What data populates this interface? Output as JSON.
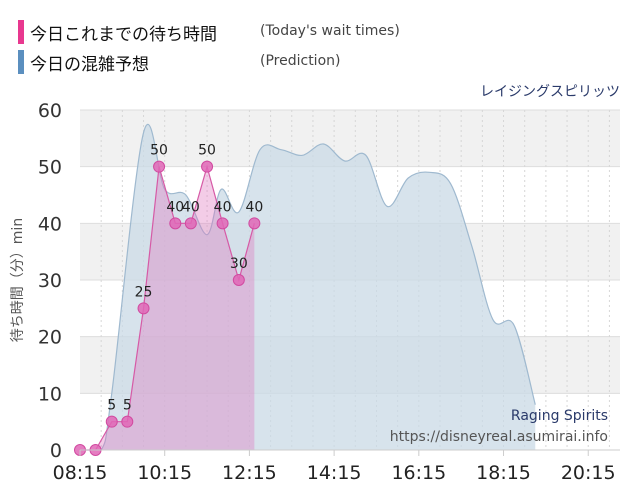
{
  "legend": {
    "items": [
      {
        "label": "今日これまでの待ち時間",
        "sub": "(Today's wait times)",
        "color": "#e8388f"
      },
      {
        "label": "今日の混雑予想",
        "sub": "(Prediction)",
        "color": "#5b8fbf"
      }
    ]
  },
  "chart_data": {
    "type": "area",
    "title": "レイジングスピリッツ",
    "xlabel": "",
    "ylabel": "待ち時間（分）min",
    "ylim": [
      0,
      60
    ],
    "yticks": [
      "0",
      "10",
      "20",
      "30",
      "40",
      "50",
      "60"
    ],
    "xticks": [
      "08:15",
      "10:15",
      "12:15",
      "14:15",
      "16:15",
      "18:15",
      "20:15"
    ],
    "xlim": [
      "08:15",
      "21:00"
    ],
    "grid": true,
    "series": [
      {
        "name": "今日これまでの待ち時間",
        "color": "#e8388f",
        "points": [
          {
            "t": "08:15",
            "v": 0
          },
          {
            "t": "08:37",
            "v": 0
          },
          {
            "t": "09:00",
            "v": 5
          },
          {
            "t": "09:22",
            "v": 5
          },
          {
            "t": "09:45",
            "v": 25
          },
          {
            "t": "10:07",
            "v": 50
          },
          {
            "t": "10:30",
            "v": 40
          },
          {
            "t": "10:52",
            "v": 40
          },
          {
            "t": "11:15",
            "v": 50
          },
          {
            "t": "11:37",
            "v": 40
          },
          {
            "t": "12:00",
            "v": 30
          },
          {
            "t": "12:22",
            "v": 40
          }
        ],
        "labels": [
          "",
          "",
          "5",
          "5",
          "25",
          "50",
          "40",
          "40",
          "50",
          "40",
          "30",
          "40"
        ]
      },
      {
        "name": "今日の混雑予想",
        "color": "#9fb9cf",
        "points": [
          {
            "t": "08:15",
            "v": 0
          },
          {
            "t": "08:45",
            "v": 0
          },
          {
            "t": "09:00",
            "v": 10
          },
          {
            "t": "09:45",
            "v": 56
          },
          {
            "t": "10:15",
            "v": 46
          },
          {
            "t": "10:45",
            "v": 45
          },
          {
            "t": "11:15",
            "v": 38
          },
          {
            "t": "11:35",
            "v": 46
          },
          {
            "t": "12:00",
            "v": 42
          },
          {
            "t": "12:30",
            "v": 53
          },
          {
            "t": "13:00",
            "v": 53
          },
          {
            "t": "13:30",
            "v": 52
          },
          {
            "t": "14:00",
            "v": 54
          },
          {
            "t": "14:30",
            "v": 51
          },
          {
            "t": "15:00",
            "v": 52
          },
          {
            "t": "15:30",
            "v": 43
          },
          {
            "t": "16:00",
            "v": 48
          },
          {
            "t": "16:30",
            "v": 49
          },
          {
            "t": "17:00",
            "v": 47
          },
          {
            "t": "17:30",
            "v": 36
          },
          {
            "t": "18:00",
            "v": 23
          },
          {
            "t": "18:30",
            "v": 22
          },
          {
            "t": "19:00",
            "v": 8
          }
        ]
      }
    ],
    "annotations": [
      "Raging Spirits",
      "https://disneyreal.asumirai.info"
    ]
  }
}
